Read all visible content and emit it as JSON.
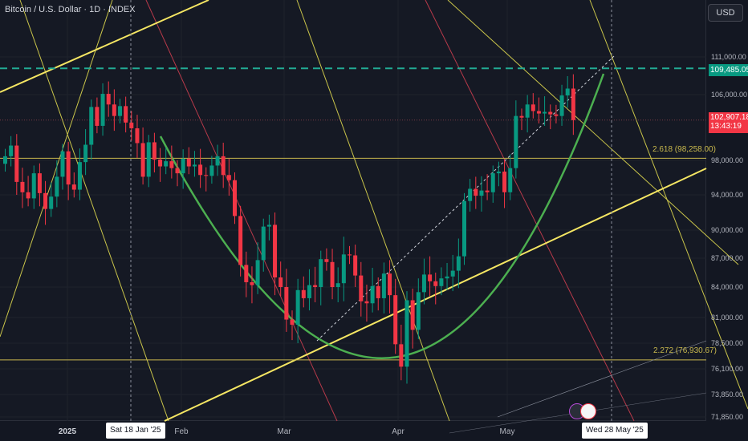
{
  "header": {
    "title": "Bitcoin / U.S. Dollar · 1D · INDEX",
    "currency_button": "USD"
  },
  "markers": {
    "current_price": "102,907.18",
    "countdown": "13:43:19",
    "key_level": "109,485.05",
    "date_left": "Sat 18 Jan '25",
    "date_right": "Wed 28 May '25",
    "fib_upper": "2.618 (98,258.00)",
    "fib_lower": "2.272 (76,930.67)"
  },
  "icons": {
    "events": "lightning-icon",
    "flag": "us-flag-icon"
  },
  "colors": {
    "background": "#151924",
    "up": "#089981",
    "down": "#f23645",
    "cup_curve": "#4caf50",
    "trendline": "#f5e663",
    "channel": "#c9c44a",
    "key_level_line": "#22ab94"
  },
  "chart_data": {
    "type": "candlestick",
    "title": "Bitcoin / U.S. Dollar · 1D · INDEX",
    "y_axis_ticks": [
      111000,
      106000,
      98000,
      94000,
      90000,
      87000,
      84000,
      81000,
      78500,
      76100,
      73850,
      71850
    ],
    "x_axis_ticks": [
      "2025",
      "Feb",
      "Mar",
      "Apr",
      "May"
    ],
    "ylim": [
      71500,
      115000
    ],
    "levels": {
      "horizontal_dashed": 109485.05,
      "fib_2_618": 98258.0,
      "fib_2_272": 76930.67,
      "current_close": 102907.18
    },
    "series": [
      {
        "ohlc_close": [
          98500,
          99800,
          95500,
          94300,
          93600,
          96500,
          94200,
          92400,
          93800,
          96100,
          99100,
          95200,
          94600,
          97800,
          99900,
          104500,
          102200,
          106100,
          104800,
          103400,
          104600,
          102600,
          101900,
          100100,
          96100,
          100200,
          98100,
          97300,
          97900,
          97100,
          96500,
          98200,
          97300,
          97500,
          96300,
          96200,
          97400,
          98500,
          96300,
          95700,
          91600,
          86300,
          84500,
          84200,
          86800,
          90400,
          90600,
          85000,
          84000,
          80800,
          80300,
          83700,
          82900,
          84200,
          84000,
          86900,
          86600,
          84000,
          84400,
          87400,
          87300,
          85200,
          82600,
          82400,
          84100,
          82900,
          85400,
          83200,
          78400,
          76300,
          82700,
          79800,
          83500,
          85300,
          84600,
          84100,
          84900,
          85100,
          85700,
          87200,
          93300,
          94700,
          93900,
          94500,
          94300,
          96500,
          96700,
          94300,
          97100,
          103400,
          103200,
          104800,
          104000,
          103700,
          103900,
          103600,
          103400,
          105900,
          106800,
          102900
        ]
      }
    ]
  }
}
